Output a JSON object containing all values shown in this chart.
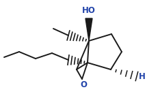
{
  "background_color": "#ffffff",
  "figsize": [
    2.34,
    1.6
  ],
  "dpi": 100,
  "HO_label": "HO",
  "O_label": "O",
  "H_label": "H",
  "HO_color": "#2244aa",
  "O_color": "#2244aa",
  "H_color": "#2244aa",
  "line_color": "#1a1a1a",
  "bond_lw": 1.4
}
